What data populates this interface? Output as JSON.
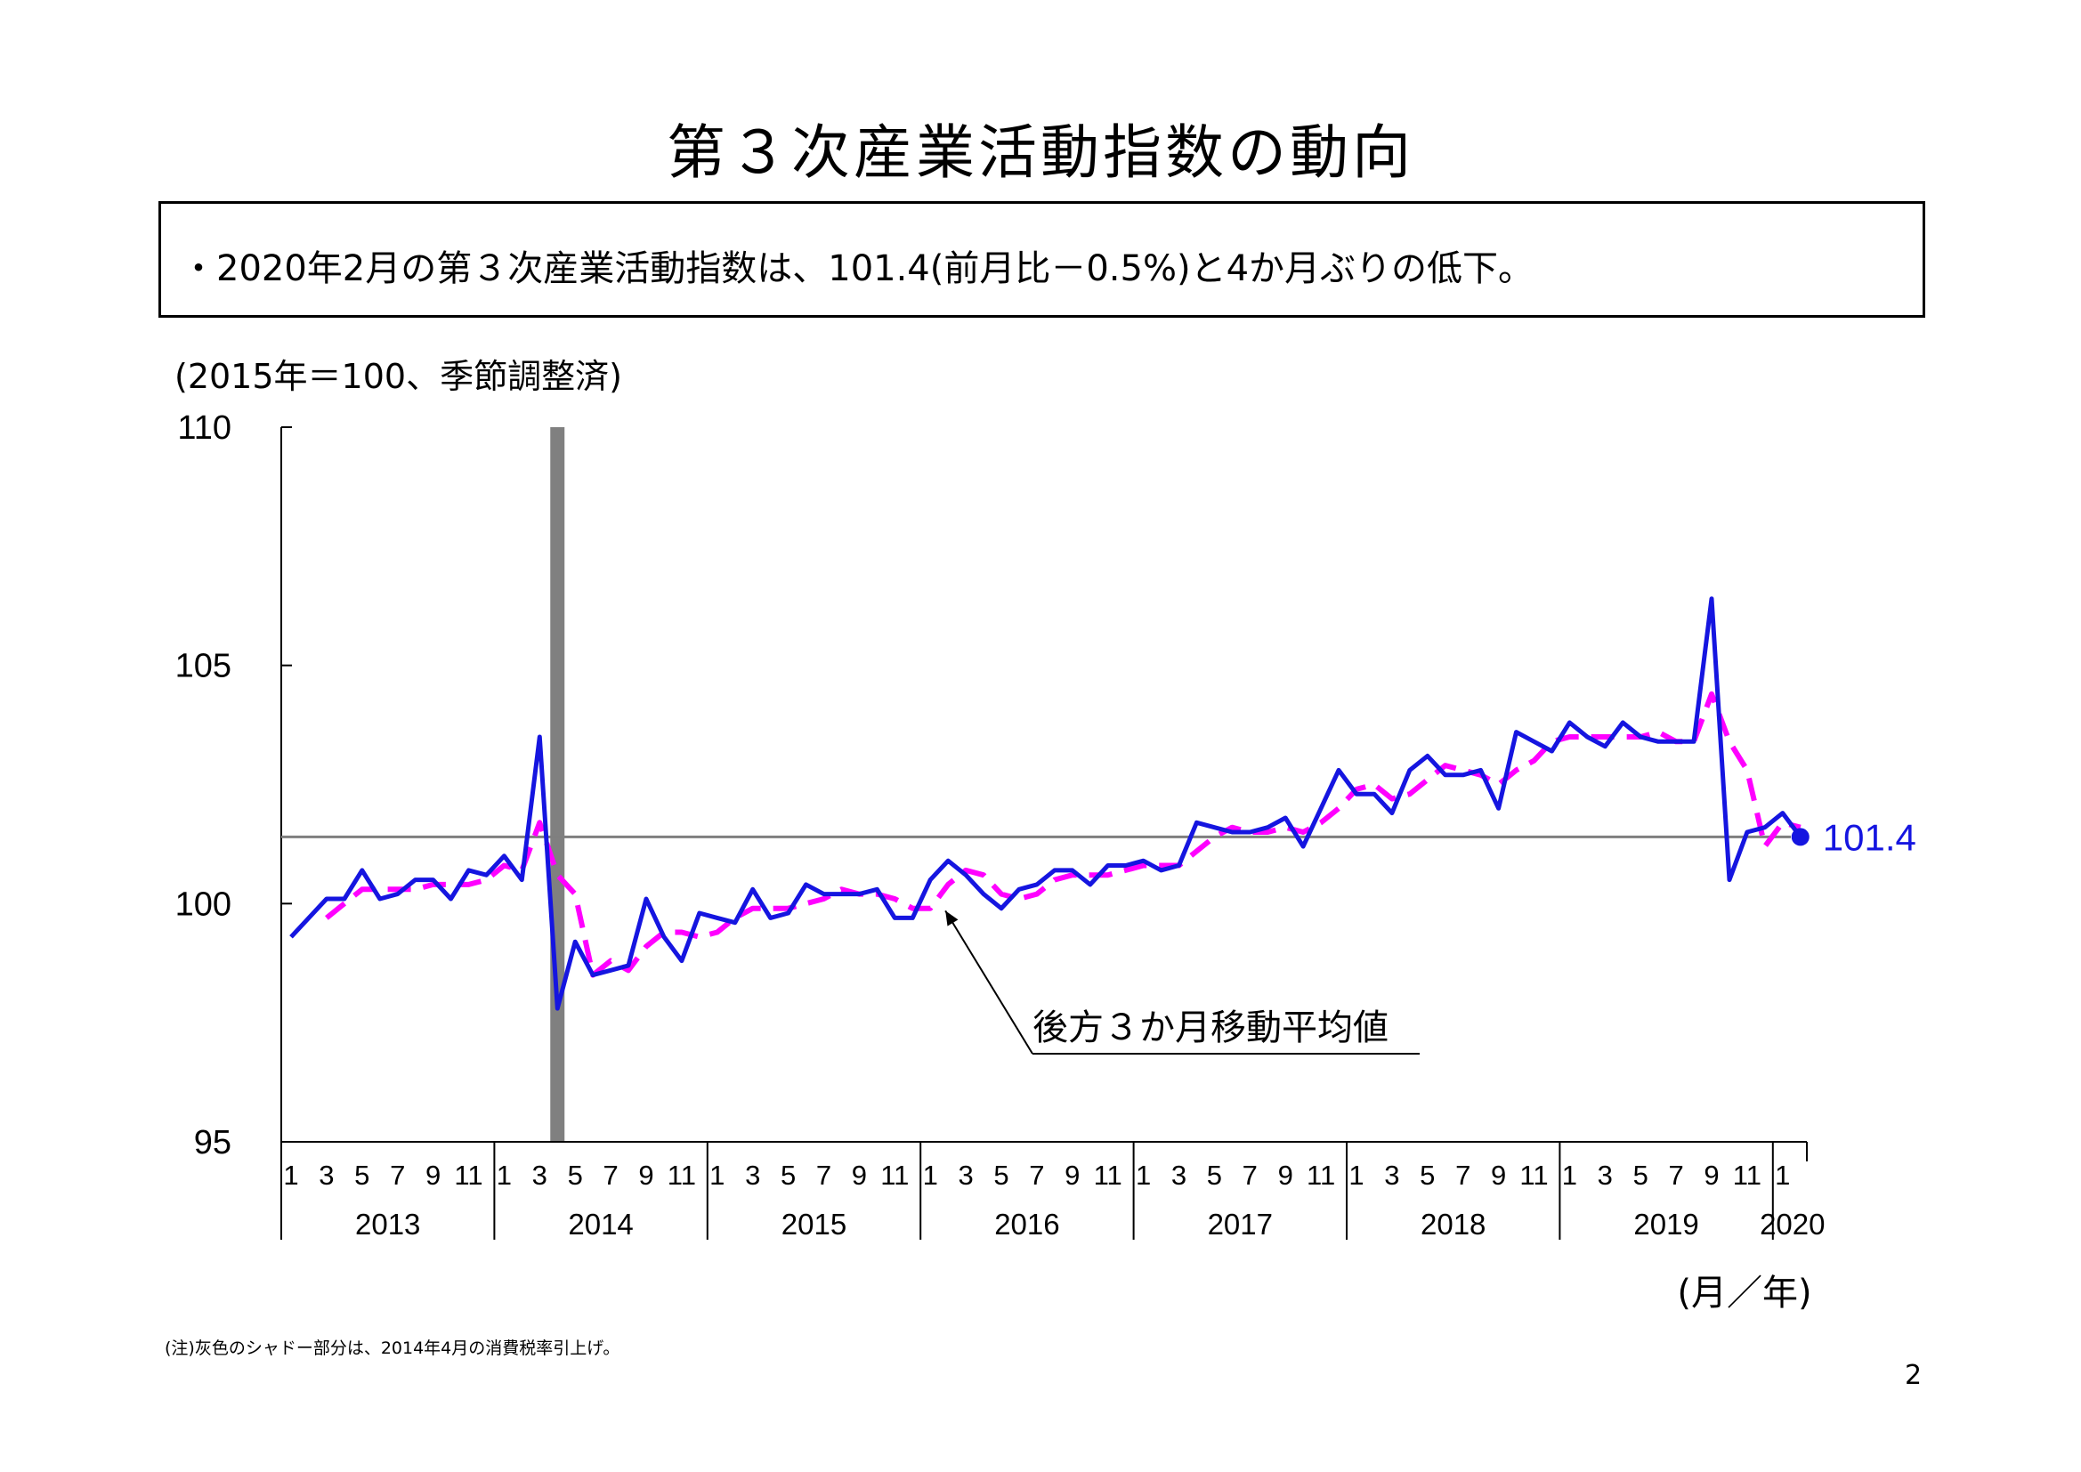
{
  "page": {
    "title": "第３次産業活動指数の動向",
    "summary": "・2020年2月の第３次産業活動指数は、101.4(前月比－0.5%)と4か月ぶりの低下。",
    "unit_label": "(2015年＝100、季節調整済)",
    "footnote": "(注)灰色のシャドー部分は、2014年4月の消費税率引上げ。",
    "page_number": "2"
  },
  "chart_data": {
    "type": "line",
    "ylim": [
      95,
      110
    ],
    "yticks": [
      "95",
      "100",
      "105",
      "110"
    ],
    "x_month_ticks": [
      "1",
      "3",
      "5",
      "7",
      "9",
      "11"
    ],
    "x_last_month_tick": "1",
    "years": [
      "2013",
      "2014",
      "2015",
      "2016",
      "2017",
      "2018",
      "2019",
      "2020"
    ],
    "xlabel": "(月／年)",
    "reference_value": 101.4,
    "latest_value_label": "101.4",
    "moving_average_annotation": "後方３か月移動平均値",
    "shaded_period": "2014-04",
    "colors": {
      "index": "#1515e0",
      "moving_average": "#ff00ff",
      "reference": "#7f7f7f",
      "shade": "#808080"
    },
    "series": [
      {
        "values": [
          99.3,
          99.7,
          100.1,
          100.1,
          100.7,
          100.1,
          100.2,
          100.5,
          100.5,
          100.1,
          100.7,
          100.6,
          101.0,
          100.5,
          103.5,
          97.8,
          99.2,
          98.5,
          98.6,
          98.7,
          100.1,
          99.3,
          98.8,
          99.8,
          99.7,
          99.6,
          100.3,
          99.7,
          99.8,
          100.4,
          100.2,
          100.2,
          100.2,
          100.3,
          99.7,
          99.7,
          100.5,
          100.9,
          100.6,
          100.2,
          99.9,
          100.3,
          100.4,
          100.7,
          100.7,
          100.4,
          100.8,
          100.8,
          100.9,
          100.7,
          100.8,
          101.7,
          101.6,
          101.5,
          101.5,
          101.6,
          101.8,
          101.2,
          102.0,
          102.8,
          102.3,
          102.3,
          101.9,
          102.8,
          103.1,
          102.7,
          102.7,
          102.8,
          102.0,
          103.6,
          103.4,
          103.2,
          103.8,
          103.5,
          103.3,
          103.8,
          103.5,
          103.4,
          103.4,
          103.4,
          106.4,
          100.5,
          101.5,
          101.6,
          101.9,
          101.4
        ]
      },
      {
        "values": [
          null,
          null,
          99.7,
          100.0,
          100.3,
          100.3,
          100.3,
          100.3,
          100.4,
          100.4,
          100.4,
          100.5,
          100.8,
          100.7,
          101.7,
          100.6,
          100.2,
          98.5,
          98.8,
          98.6,
          99.1,
          99.4,
          99.4,
          99.3,
          99.4,
          99.7,
          99.9,
          99.9,
          99.9,
          100.0,
          100.1,
          100.3,
          100.2,
          100.2,
          100.1,
          99.9,
          99.9,
          100.4,
          100.7,
          100.6,
          100.2,
          100.1,
          100.2,
          100.5,
          100.6,
          100.6,
          100.6,
          100.7,
          100.8,
          100.8,
          100.8,
          101.1,
          101.4,
          101.6,
          101.5,
          101.5,
          101.6,
          101.5,
          101.7,
          102.0,
          102.4,
          102.5,
          102.2,
          102.3,
          102.6,
          102.9,
          102.8,
          102.7,
          102.5,
          102.8,
          103.0,
          103.4,
          103.5,
          103.5,
          103.5,
          103.5,
          103.5,
          103.6,
          103.4,
          103.4,
          104.4,
          103.4,
          102.8,
          101.2,
          101.7,
          101.6
        ]
      }
    ]
  }
}
